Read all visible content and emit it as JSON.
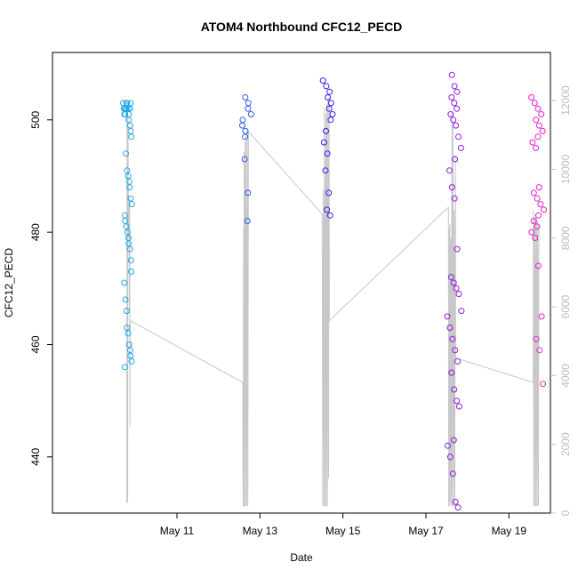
{
  "chart_data": {
    "type": "scatter",
    "title": "ATOM4 Northbound CFC12_PECD",
    "xlabel": "Date",
    "ylabel": "CFC12_PECD",
    "x_range_days": [
      "2016-05-08",
      "2016-05-20"
    ],
    "ylim": [
      430,
      512
    ],
    "y2lim": [
      0,
      13400
    ],
    "x_ticks": [
      {
        "date": "2016-05-11",
        "label": "May 11"
      },
      {
        "date": "2016-05-13",
        "label": "May 13"
      },
      {
        "date": "2016-05-15",
        "label": "May 15"
      },
      {
        "date": "2016-05-17",
        "label": "May 17"
      },
      {
        "date": "2016-05-19",
        "label": "May 19"
      }
    ],
    "y_ticks": [
      440,
      460,
      480,
      500
    ],
    "y_ticks_labels": [
      "440",
      "460",
      "480",
      "500"
    ],
    "y2_ticks": [
      0,
      2000,
      4000,
      6000,
      8000,
      10000,
      12000
    ],
    "y2_ticks_labels": [
      "0",
      "2000",
      "4000",
      "6000",
      "8000",
      "10000",
      "12000"
    ],
    "grid": false,
    "colors": {
      "flight1": "#1fa8e8",
      "flight2": "#2a5bf0",
      "flight3": "#3a1af0",
      "flight4": "#8e1ce0",
      "flight5": "#e61fd0",
      "altitude_line": "#c8c8c8",
      "axis": "#000000",
      "right_axis": "#bdbdbd"
    },
    "series": [
      {
        "color_key": "flight1",
        "x": [
          "2016-05-09 19:00",
          "2016-05-09 19:30",
          "2016-05-09 20:00",
          "2016-05-09 20:30",
          "2016-05-09 21:00"
        ],
        "y_sets": [
          [
            503,
            502,
            501,
            502,
            503,
            502,
            501,
            502,
            503,
            502,
            501,
            502,
            503
          ],
          [
            494,
            491,
            490,
            489,
            488,
            486,
            485,
            483,
            482,
            481,
            480,
            479,
            478,
            477,
            475,
            473,
            471,
            468,
            466,
            463,
            462,
            460,
            459,
            458,
            457,
            456
          ],
          [
            500,
            499,
            498,
            497
          ]
        ]
      },
      {
        "color_key": "flight2",
        "x": [
          "2016-05-12 15:00",
          "2016-05-12 17:00"
        ],
        "y_sets": [
          [
            504,
            503,
            502,
            501,
            500,
            499,
            498,
            497,
            493,
            487,
            482
          ]
        ]
      },
      {
        "color_key": "flight3",
        "x": [
          "2016-05-14 14:00",
          "2016-05-14 17:00"
        ],
        "y_sets": [
          [
            507,
            506,
            505,
            504,
            503,
            502,
            501,
            500,
            498,
            496,
            494,
            491,
            487,
            484,
            483
          ]
        ]
      },
      {
        "color_key": "flight4",
        "x": [
          "2016-05-17 14:00",
          "2016-05-17 19:00"
        ],
        "y_sets": [
          [
            508,
            506,
            505,
            504,
            503,
            502,
            501,
            500,
            499,
            497,
            495,
            493,
            491,
            488,
            486,
            477,
            472,
            471,
            470,
            469,
            466,
            465,
            463,
            461,
            459,
            457,
            455,
            452,
            450,
            449,
            443,
            442,
            440,
            437,
            432,
            431
          ]
        ]
      },
      {
        "color_key": "flight5",
        "x": [
          "2016-05-19 14:00",
          "2016-05-19 19:00"
        ],
        "y_sets": [
          [
            504,
            503,
            502,
            501,
            500,
            499,
            498,
            497,
            496,
            495,
            488,
            487,
            486,
            485,
            484,
            483,
            482,
            481,
            480,
            479,
            474,
            465,
            461,
            459,
            453
          ]
        ]
      }
    ],
    "altitude_series": {
      "name": "",
      "unit": "",
      "points": [
        [
          "2016-05-09 19:00",
          300
        ],
        [
          "2016-05-09 19:10",
          12000
        ],
        [
          "2016-05-09 19:15",
          500
        ],
        [
          "2016-05-09 19:20",
          9500
        ],
        [
          "2016-05-09 19:30",
          300
        ],
        [
          "2016-05-09 19:40",
          11500
        ],
        [
          "2016-05-09 19:50",
          10000
        ],
        [
          "2016-05-09 20:00",
          8000
        ],
        [
          "2016-05-09 20:20",
          9000
        ],
        [
          "2016-05-09 20:30",
          5800
        ],
        [
          "2016-05-09 20:40",
          9200
        ],
        [
          "2016-05-09 20:50",
          2500
        ],
        [
          "2016-05-09 21:00",
          5600
        ],
        [
          "2016-05-12 14:00",
          3800
        ],
        [
          "2016-05-12 14:20",
          200
        ],
        [
          "2016-05-12 14:30",
          8300
        ],
        [
          "2016-05-12 14:40",
          200
        ],
        [
          "2016-05-12 14:50",
          10500
        ],
        [
          "2016-05-12 15:00",
          200
        ],
        [
          "2016-05-12 15:20",
          10800
        ],
        [
          "2016-05-12 15:40",
          200
        ],
        [
          "2016-05-12 16:00",
          11000
        ],
        [
          "2016-05-12 16:20",
          200
        ],
        [
          "2016-05-12 16:40",
          11200
        ],
        [
          "2016-05-12 17:00",
          200
        ],
        [
          "2016-05-12 17:20",
          11100
        ],
        [
          "2016-05-14 12:00",
          8700
        ],
        [
          "2016-05-14 12:20",
          200
        ],
        [
          "2016-05-14 12:40",
          9400
        ],
        [
          "2016-05-14 13:00",
          200
        ],
        [
          "2016-05-14 13:20",
          11800
        ],
        [
          "2016-05-14 13:40",
          200
        ],
        [
          "2016-05-14 14:00",
          11600
        ],
        [
          "2016-05-14 14:20",
          200
        ],
        [
          "2016-05-14 14:40",
          11900
        ],
        [
          "2016-05-14 15:00",
          200
        ],
        [
          "2016-05-14 15:20",
          12000
        ],
        [
          "2016-05-14 15:40",
          1000
        ],
        [
          "2016-05-14 16:00",
          12100
        ],
        [
          "2016-05-14 16:10",
          5600
        ],
        [
          "2016-05-17 13:00",
          8900
        ],
        [
          "2016-05-17 13:10",
          200
        ],
        [
          "2016-05-17 13:20",
          8300
        ],
        [
          "2016-05-17 13:30",
          200
        ],
        [
          "2016-05-17 13:50",
          8400
        ],
        [
          "2016-05-17 14:00",
          300
        ],
        [
          "2016-05-17 14:20",
          8000
        ],
        [
          "2016-05-17 14:40",
          200
        ],
        [
          "2016-05-17 15:00",
          11700
        ],
        [
          "2016-05-17 15:20",
          200
        ],
        [
          "2016-05-17 15:40",
          11300
        ],
        [
          "2016-05-17 16:00",
          200
        ],
        [
          "2016-05-17 16:20",
          8800
        ],
        [
          "2016-05-17 16:40",
          200
        ],
        [
          "2016-05-17 17:00",
          10400
        ],
        [
          "2016-05-17 17:10",
          4500
        ],
        [
          "2016-05-17 18:00",
          4500
        ],
        [
          "2016-05-19 14:00",
          3800
        ],
        [
          "2016-05-19 14:10",
          8800
        ],
        [
          "2016-05-19 14:20",
          200
        ],
        [
          "2016-05-19 14:40",
          8600
        ],
        [
          "2016-05-19 15:00",
          200
        ],
        [
          "2016-05-19 15:20",
          8700
        ],
        [
          "2016-05-19 15:40",
          200
        ],
        [
          "2016-05-19 16:00",
          8600
        ],
        [
          "2016-05-19 16:20",
          200
        ],
        [
          "2016-05-19 16:40",
          8500
        ],
        [
          "2016-05-19 17:00",
          200
        ],
        [
          "2016-05-19 17:20",
          8400
        ]
      ]
    }
  }
}
